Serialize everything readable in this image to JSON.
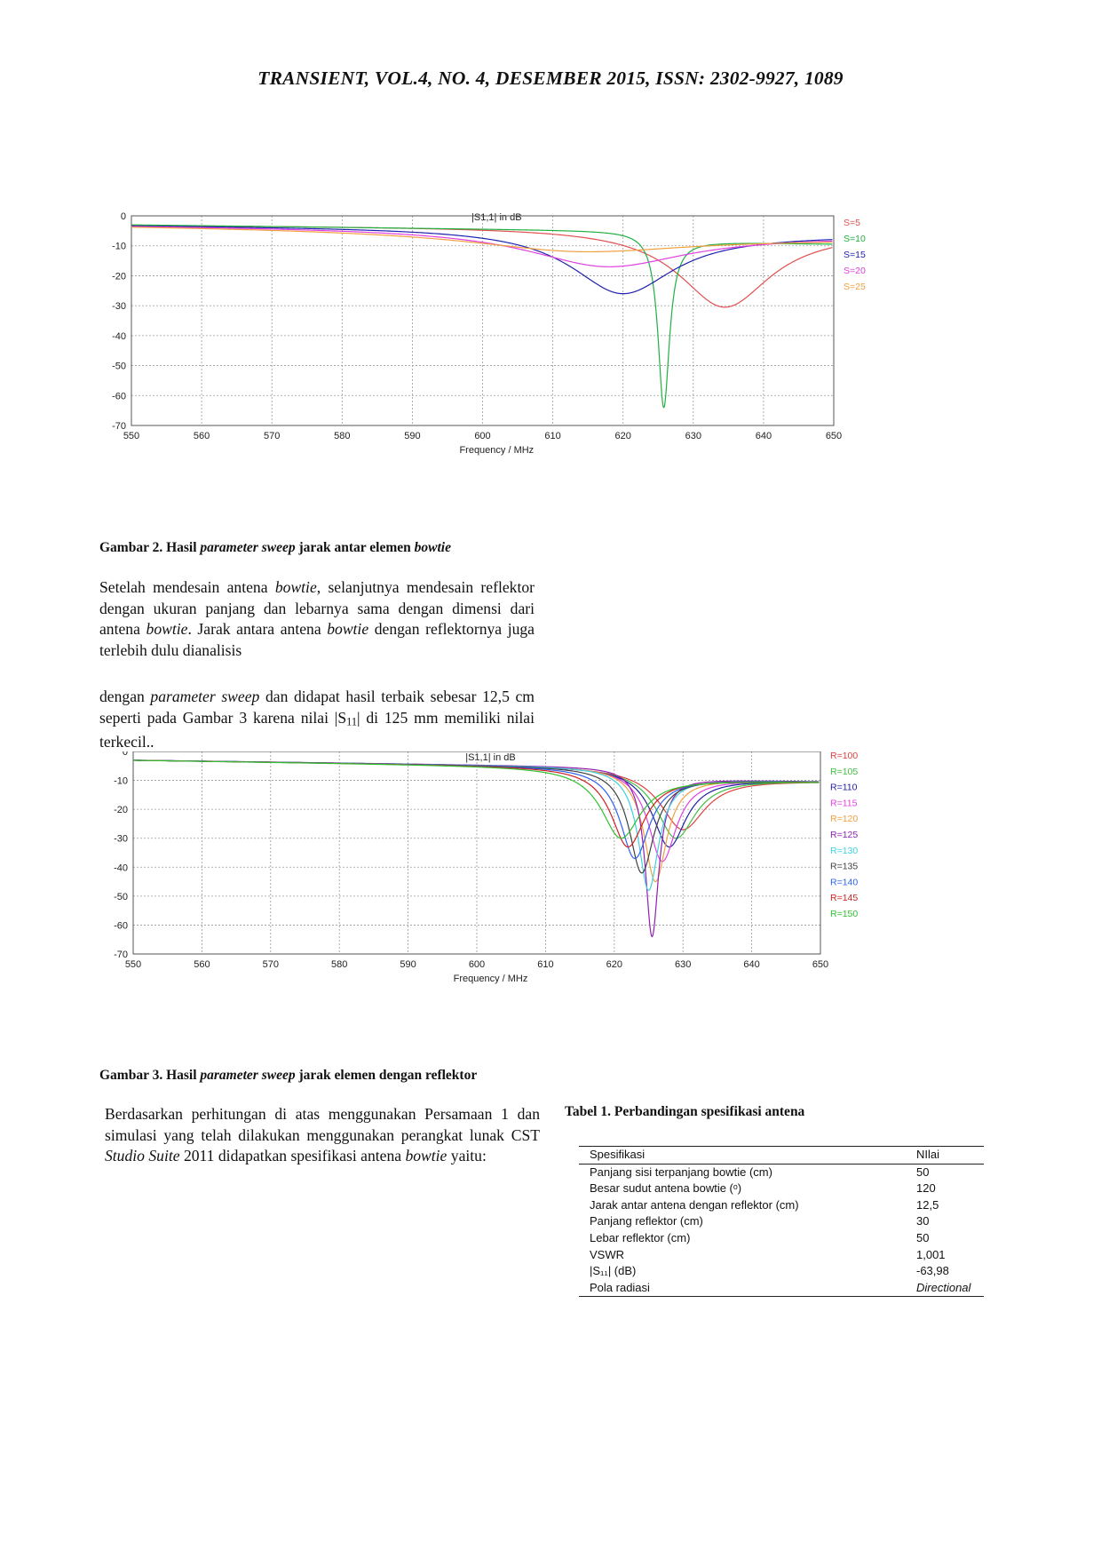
{
  "header": {
    "text": "TRANSIENT, VOL.4, NO. 4, DESEMBER 2015, ISSN: 2302-9927, 1089"
  },
  "figure2": {
    "caption_prefix": "Gambar 2. Hasil ",
    "caption_italic1": "parameter sweep",
    "caption_mid": " jarak antar elemen ",
    "caption_italic2": "bowtie"
  },
  "para1": {
    "t1": "Setelah mendesain antena ",
    "i1": "bowtie",
    "t2": ", selanjutnya mendesain reflektor dengan ukuran panjang dan lebarnya sama dengan dimensi dari antena ",
    "i2": "bowtie",
    "t3": ". Jarak antara antena ",
    "i3": "bowtie",
    "t4": " dengan reflektornya juga terlebih dulu dianalisis"
  },
  "para2": {
    "t1": "dengan ",
    "i1": "parameter  sweep",
    "t2": " dan didapat hasil terbaik sebesar 12,5 cm seperti pada Gambar 3 karena nilai |S",
    "sub": "11",
    "t3": "| di 125 mm memiliki nilai terkecil.."
  },
  "figure3": {
    "caption_prefix": "Gambar 3. Hasil ",
    "caption_italic1": "parameter sweep",
    "caption_mid": " jarak elemen dengan reflektor"
  },
  "para3": {
    "t1": "Berdasarkan perhitungan di atas menggunakan Persamaan 1 dan simulasi yang telah dilakukan menggunakan perangkat lunak CST ",
    "i1": "Studio Suite",
    "t2": " 2011 didapatkan spesifikasi antena ",
    "i2": "bowtie",
    "t3": " yaitu:"
  },
  "table1": {
    "title": "Tabel 1. Perbandingan spesifikasi antena",
    "headers": [
      "Spesifikasi",
      "NIlai"
    ],
    "rows": [
      [
        "Panjang sisi terpanjang bowtie (cm)",
        "50"
      ],
      [
        "Besar sudut antena bowtie (ᵒ)",
        "120"
      ],
      [
        "Jarak antar antena dengan reflektor (cm)",
        "12,5"
      ],
      [
        "Panjang reflektor (cm)",
        "30"
      ],
      [
        "Lebar reflektor (cm)",
        "50"
      ],
      [
        "VSWR",
        "1,001"
      ],
      [
        "|S₁₁| (dB)",
        "-63,98"
      ],
      [
        "Pola radiasi",
        "Directional"
      ]
    ]
  },
  "chart_data": [
    {
      "type": "line",
      "title": "|S1,1| in dB",
      "xlabel": "Frequency / MHz",
      "ylabel": "",
      "xlim": [
        550,
        650
      ],
      "ylim": [
        -70,
        0
      ],
      "xticks": [
        550,
        560,
        570,
        580,
        590,
        600,
        610,
        620,
        630,
        640,
        650
      ],
      "yticks": [
        0,
        -10,
        -20,
        -30,
        -40,
        -50,
        -60,
        -70
      ],
      "grid": true,
      "legend_position": "right",
      "series": [
        {
          "name": "S=5",
          "color": "#e05050",
          "f0": 634.5,
          "depth": -30.5,
          "start": -3,
          "width": 8,
          "end": -5.5
        },
        {
          "name": "S=10",
          "color": "#20b040",
          "f0": 625.8,
          "depth": -64,
          "start": -3,
          "width": 1.0,
          "end": -10
        },
        {
          "name": "S=15",
          "color": "#2020b0",
          "f0": 620,
          "depth": -26,
          "start": -3,
          "width": 9,
          "end": -6.5
        },
        {
          "name": "S=20",
          "color": "#e040e0",
          "f0": 618,
          "depth": -17,
          "start": -3,
          "width": 14,
          "end": -7
        },
        {
          "name": "S=25",
          "color": "#f0a040",
          "f0": 615,
          "depth": -12,
          "start": -3,
          "width": 20,
          "end": -8
        }
      ]
    },
    {
      "type": "line",
      "title": "|S1,1| in dB",
      "xlabel": "Frequency / MHz",
      "ylabel": "",
      "xlim": [
        550,
        650
      ],
      "ylim": [
        -70,
        0
      ],
      "xticks": [
        550,
        560,
        570,
        580,
        590,
        600,
        610,
        620,
        630,
        640,
        650
      ],
      "yticks": [
        0,
        -10,
        -20,
        -30,
        -40,
        -50,
        -60,
        -70
      ],
      "grid": true,
      "legend_position": "right",
      "series": [
        {
          "name": "R=100",
          "color": "#e04040",
          "f0": 630,
          "depth": -27,
          "start": -3,
          "width": 4,
          "end": -11
        },
        {
          "name": "R=105",
          "color": "#40c040",
          "f0": 629,
          "depth": -30,
          "start": -3,
          "width": 3.5,
          "end": -11
        },
        {
          "name": "R=110",
          "color": "#2020a0",
          "f0": 628,
          "depth": -33,
          "start": -3,
          "width": 3,
          "end": -11
        },
        {
          "name": "R=115",
          "color": "#e040e0",
          "f0": 627,
          "depth": -38,
          "start": -3,
          "width": 2.5,
          "end": -11
        },
        {
          "name": "R=120",
          "color": "#f0a040",
          "f0": 626,
          "depth": -45,
          "start": -3,
          "width": 2,
          "end": -11
        },
        {
          "name": "R=125",
          "color": "#9020b0",
          "f0": 625.5,
          "depth": -64,
          "start": -3,
          "width": 1.2,
          "end": -11
        },
        {
          "name": "R=130",
          "color": "#40d0e0",
          "f0": 625,
          "depth": -48,
          "start": -3,
          "width": 1.8,
          "end": -11
        },
        {
          "name": "R=135",
          "color": "#404040",
          "f0": 624,
          "depth": -42,
          "start": -3,
          "width": 2.2,
          "end": -11
        },
        {
          "name": "R=140",
          "color": "#3060f0",
          "f0": 623,
          "depth": -37,
          "start": -3,
          "width": 2.6,
          "end": -11
        },
        {
          "name": "R=145",
          "color": "#d02020",
          "f0": 622,
          "depth": -33,
          "start": -3,
          "width": 3,
          "end": -11
        },
        {
          "name": "R=150",
          "color": "#30c030",
          "f0": 621,
          "depth": -30,
          "start": -3,
          "width": 3.5,
          "end": -11
        }
      ]
    }
  ]
}
